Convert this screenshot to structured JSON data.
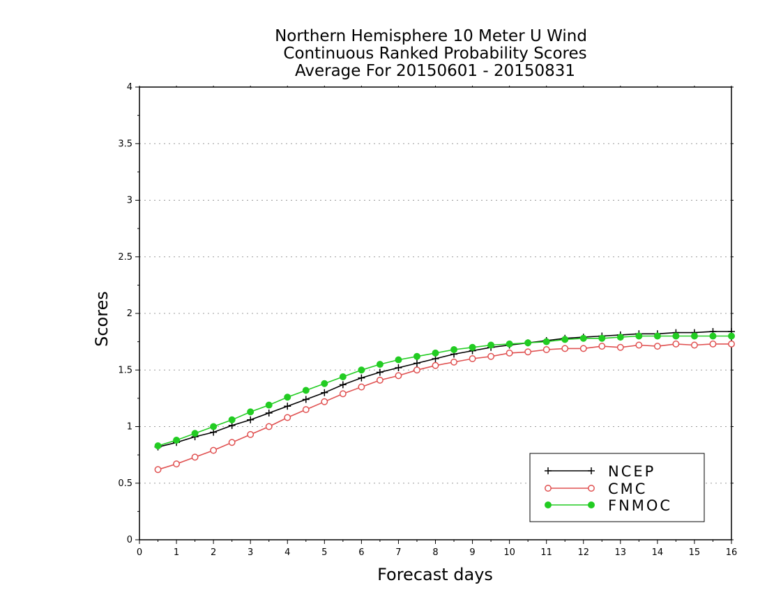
{
  "chart_data": {
    "type": "line",
    "title": [
      "Northern Hemisphere 10 Meter U Wind",
      "Continuous Ranked Probability Scores",
      "Average For 20150601 - 20150831"
    ],
    "xlabel": "Forecast days",
    "ylabel": "Scores",
    "xlim": [
      0,
      16
    ],
    "ylim": [
      0,
      4
    ],
    "xticks": [
      0,
      1,
      2,
      3,
      4,
      5,
      6,
      7,
      8,
      9,
      10,
      11,
      12,
      13,
      14,
      15,
      16
    ],
    "yticks": [
      0,
      0.5,
      1,
      1.5,
      2,
      2.5,
      3,
      3.5,
      4
    ],
    "ytick_labels": [
      "0",
      "0.5",
      "1",
      "1.5",
      "2",
      "2.5",
      "3",
      "3.5",
      "4"
    ],
    "grid": "horizontal dotted",
    "legend_position": "bottom-right",
    "x": [
      0.5,
      1,
      1.5,
      2,
      2.5,
      3,
      3.5,
      4,
      4.5,
      5,
      5.5,
      6,
      6.5,
      7,
      7.5,
      8,
      8.5,
      9,
      9.5,
      10,
      10.5,
      11,
      11.5,
      12,
      12.5,
      13,
      13.5,
      14,
      14.5,
      15,
      15.5,
      16
    ],
    "series": [
      {
        "name": "NCEP",
        "color": "#000000",
        "marker": "plus",
        "values": [
          0.82,
          0.86,
          0.91,
          0.95,
          1.01,
          1.06,
          1.12,
          1.18,
          1.24,
          1.3,
          1.37,
          1.43,
          1.48,
          1.52,
          1.56,
          1.6,
          1.64,
          1.67,
          1.7,
          1.72,
          1.74,
          1.76,
          1.78,
          1.79,
          1.8,
          1.81,
          1.82,
          1.82,
          1.83,
          1.83,
          1.84,
          1.84
        ]
      },
      {
        "name": "CMC",
        "color": "#e05050",
        "marker": "open-circle",
        "values": [
          0.62,
          0.67,
          0.73,
          0.79,
          0.86,
          0.93,
          1.0,
          1.08,
          1.15,
          1.22,
          1.29,
          1.35,
          1.41,
          1.45,
          1.5,
          1.54,
          1.57,
          1.6,
          1.62,
          1.65,
          1.66,
          1.68,
          1.69,
          1.69,
          1.71,
          1.7,
          1.72,
          1.71,
          1.73,
          1.72,
          1.73,
          1.73
        ]
      },
      {
        "name": "FNMOC",
        "color": "#22cc22",
        "marker": "filled-circle",
        "values": [
          0.83,
          0.88,
          0.94,
          1.0,
          1.06,
          1.13,
          1.19,
          1.26,
          1.32,
          1.38,
          1.44,
          1.5,
          1.55,
          1.59,
          1.62,
          1.65,
          1.68,
          1.7,
          1.72,
          1.73,
          1.74,
          1.75,
          1.77,
          1.78,
          1.78,
          1.79,
          1.8,
          1.8,
          1.8,
          1.8,
          1.8,
          1.8
        ]
      }
    ]
  }
}
